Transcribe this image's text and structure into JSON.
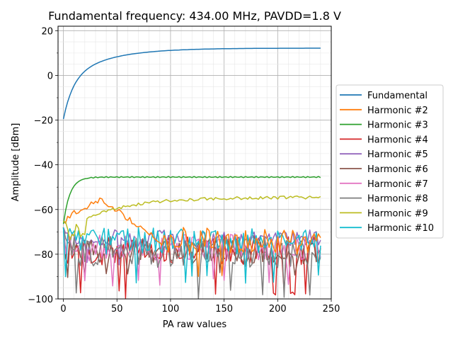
{
  "chart_data": {
    "type": "line",
    "title": "Fundamental frequency: 434.00 MHz, PAVDD=1.8 V",
    "xlabel": "PA raw values",
    "ylabel": "Amplitude [dBm]",
    "xlim": [
      -5,
      250
    ],
    "ylim": [
      -100,
      22
    ],
    "xticks": [
      0,
      50,
      100,
      150,
      200,
      250
    ],
    "yticks": [
      -100,
      -80,
      -60,
      -40,
      -20,
      0,
      20
    ],
    "x_minor_step": 10,
    "y_minor_step": 5,
    "grid": true,
    "legend_position": "outside-right",
    "series": [
      {
        "name": "Fundamental",
        "color": "#1f77b4",
        "kind": "fundamental",
        "params": {
          "start": -19.5,
          "end": 12.2,
          "x0": 0,
          "x1": 240
        }
      },
      {
        "name": "Harmonic #2",
        "color": "#ff7f0e",
        "kind": "harmonic",
        "params": {
          "seed": 2,
          "start": -66,
          "rise_to": -62,
          "rise_x": 8,
          "hump_x": 35,
          "hump_y": -55.5,
          "end_x": 90,
          "end_y": -74,
          "noise": 6,
          "dips": 0.06
        }
      },
      {
        "name": "Harmonic #3",
        "color": "#2ca02c",
        "kind": "saturating",
        "params": {
          "start": -66.5,
          "plateau": -45.5,
          "tau": 6
        }
      },
      {
        "name": "Harmonic #4",
        "color": "#d62728",
        "kind": "noisy",
        "params": {
          "seed": 4,
          "mean": -78,
          "spread": 7,
          "dips": 0.08,
          "dip_to": -100
        }
      },
      {
        "name": "Harmonic #5",
        "color": "#9467bd",
        "kind": "noisy",
        "params": {
          "seed": 5,
          "mean": -73,
          "spread": 4,
          "dips": 0.03,
          "dip_to": -86
        }
      },
      {
        "name": "Harmonic #6",
        "color": "#8c564b",
        "kind": "noisy",
        "params": {
          "seed": 6,
          "mean": -79,
          "spread": 6,
          "dips": 0.05,
          "dip_to": -92
        }
      },
      {
        "name": "Harmonic #7",
        "color": "#e377c2",
        "kind": "noisy",
        "params": {
          "seed": 7,
          "mean": -77,
          "spread": 6,
          "dips": 0.05,
          "dip_to": -95
        }
      },
      {
        "name": "Harmonic #8",
        "color": "#7f7f7f",
        "kind": "noisy",
        "params": {
          "seed": 8,
          "mean": -79,
          "spread": 7,
          "dips": 0.07,
          "dip_to": -100
        }
      },
      {
        "name": "Harmonic #9",
        "color": "#bcbd22",
        "kind": "rising",
        "params": {
          "seed": 9,
          "start": -70,
          "mid_x": 25,
          "mid_y": -63,
          "end": -54.5,
          "noise": 0.7
        }
      },
      {
        "name": "Harmonic #10",
        "color": "#17becf",
        "kind": "noisy",
        "params": {
          "seed": 10,
          "mean": -74,
          "spread": 6,
          "dips": 0.04,
          "dip_to": -93
        }
      }
    ]
  }
}
